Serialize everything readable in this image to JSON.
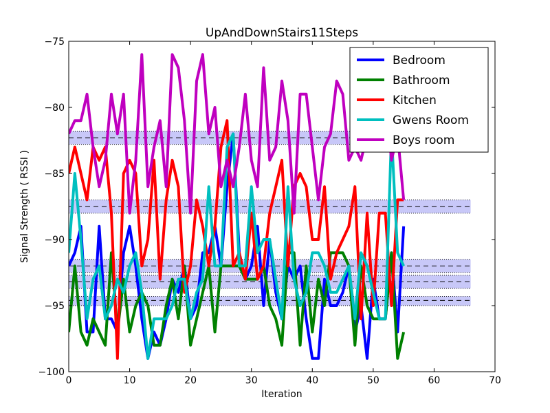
{
  "chart_data": {
    "type": "line",
    "title": "UpAndDownStairs11Steps",
    "xlabel": "Iteration",
    "ylabel": "Signal Strength  ( RSSI )",
    "xlim": [
      0,
      70
    ],
    "ylim": [
      -100,
      -75
    ],
    "xticks": [
      0,
      10,
      20,
      30,
      40,
      50,
      60,
      70
    ],
    "yticks": [
      -100,
      -95,
      -90,
      -85,
      -80,
      -75
    ],
    "legend_position": "top-right",
    "bands": [
      {
        "mean": -82.3,
        "low": -82.8,
        "high": -81.8,
        "color": "#c8c8f8"
      },
      {
        "mean": -87.5,
        "low": -88.0,
        "high": -87.0,
        "color": "#c8c8f8"
      },
      {
        "mean": -92.0,
        "low": -92.5,
        "high": -91.5,
        "color": "#c8c8f8"
      },
      {
        "mean": -93.2,
        "low": -93.7,
        "high": -92.7,
        "color": "#c8c8f8"
      },
      {
        "mean": -94.6,
        "low": -95.0,
        "high": -94.3,
        "color": "#c8c8f8"
      }
    ],
    "band_x_range": [
      0,
      66
    ],
    "series": [
      {
        "name": "Bedroom",
        "color": "#0000ff",
        "values": [
          -92,
          -91,
          -89,
          -97,
          -97,
          -89,
          -96,
          -96,
          -97,
          -91,
          -89,
          -92,
          -96,
          -99,
          -97,
          -98,
          -96,
          -93,
          -94,
          -92,
          -96,
          -95,
          -91,
          -91,
          -89,
          -92,
          -86,
          -82,
          -91,
          -93,
          -92,
          -89,
          -95,
          -90,
          -94,
          -96,
          -92,
          -93,
          -92,
          -96,
          -99,
          -99,
          -93,
          -95,
          -95,
          -94,
          -92,
          -97,
          -95,
          -99,
          -93,
          -96,
          -96,
          -91,
          -97,
          -89
        ]
      },
      {
        "name": "Bathroom",
        "color": "#008000",
        "values": [
          -97,
          -92,
          -97,
          -98,
          -96,
          -97,
          -98,
          -91,
          -97,
          -93,
          -97,
          -95,
          -94,
          -95,
          -98,
          -98,
          -95,
          -93,
          -96,
          -92,
          -98,
          -96,
          -94,
          -92,
          -97,
          -92,
          -92,
          -92,
          -92,
          -93,
          -93,
          -93,
          -92,
          -95,
          -96,
          -98,
          -91,
          -91,
          -98,
          -92,
          -97,
          -93,
          -95,
          -91,
          -91,
          -91,
          -92,
          -98,
          -92,
          -95,
          -96,
          -96,
          -96,
          -91,
          -99,
          -97
        ]
      },
      {
        "name": "Kitchen",
        "color": "#ff0000",
        "values": [
          -85,
          -83,
          -85,
          -87,
          -83,
          -84,
          -83,
          -88,
          -99,
          -85,
          -84,
          -85,
          -92,
          -90,
          -84,
          -93,
          -87,
          -84,
          -86,
          -94,
          -92,
          -87,
          -89,
          -92,
          -89,
          -83,
          -81,
          -92,
          -91,
          -93,
          -88,
          -93,
          -92,
          -88,
          -86,
          -84,
          -92,
          -86,
          -85,
          -86,
          -90,
          -90,
          -86,
          -93,
          -91,
          -90,
          -89,
          -86,
          -96,
          -88,
          -95,
          -88,
          -88,
          -95,
          -87,
          -87
        ]
      },
      {
        "name": "Gwens Room",
        "color": "#00bfbf",
        "values": [
          -91,
          -85,
          -90,
          -96,
          -93,
          -92,
          -96,
          -95,
          -93,
          -94,
          -92,
          -91,
          -94,
          -99,
          -96,
          -96,
          -96,
          -95,
          -93,
          -93,
          -96,
          -94,
          -93,
          -86,
          -92,
          -92,
          -83,
          -82,
          -92,
          -92,
          -86,
          -91,
          -90,
          -90,
          -93,
          -96,
          -86,
          -93,
          -95,
          -94,
          -91,
          -91,
          -92,
          -94,
          -94,
          -93,
          -92,
          -96,
          -91,
          -92,
          -94,
          -96,
          -96,
          -82,
          -91,
          -92
        ]
      },
      {
        "name": "Boys room",
        "color": "#bf00bf",
        "values": [
          -82,
          -81,
          -81,
          -79,
          -83,
          -86,
          -84,
          -79,
          -82,
          -79,
          -88,
          -84,
          -76,
          -86,
          -83,
          -81,
          -86,
          -76,
          -77,
          -81,
          -88,
          -78,
          -76,
          -82,
          -80,
          -86,
          -84,
          -86,
          -83,
          -79,
          -84,
          -86,
          -77,
          -84,
          -83,
          -78,
          -81,
          -88,
          -79,
          -79,
          -83,
          -87,
          -83,
          -82,
          -78,
          -79,
          -84,
          -83,
          -84,
          -82,
          -80,
          -82,
          -79,
          -84,
          -82,
          -87
        ]
      }
    ]
  }
}
